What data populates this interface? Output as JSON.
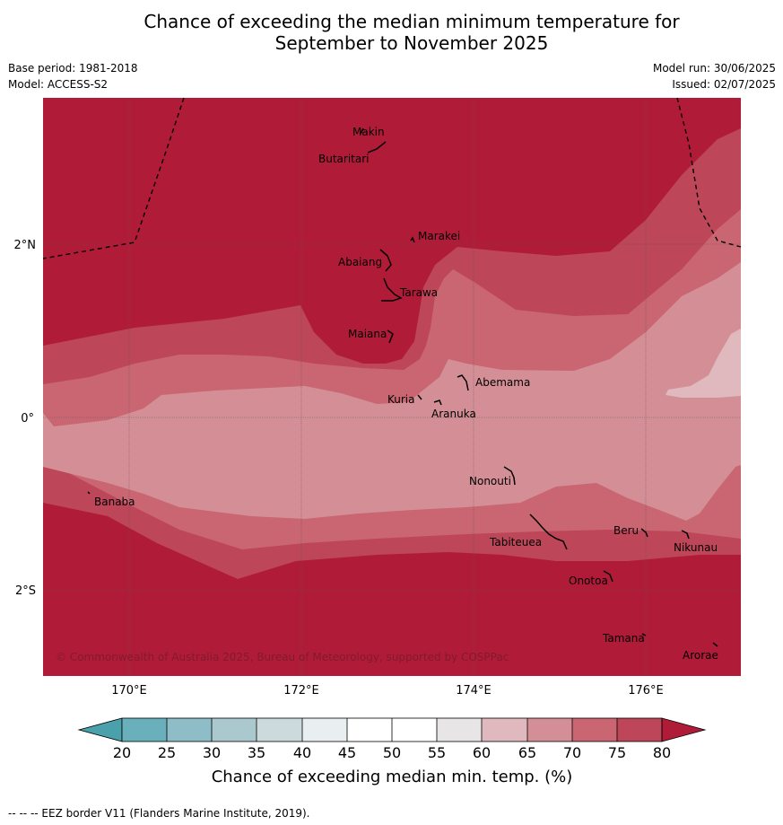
{
  "title_line1": "Chance of exceeding the median minimum temperature for",
  "title_line2": "September to November 2025",
  "base_period": "Base period: 1981-2018",
  "model": "Model: ACCESS-S2",
  "model_run": "Model run: 30/06/2025",
  "issued": "Issued: 02/07/2025",
  "copyright": "© Commonwealth of Australia 2025, Bureau of Meteorology, supported by COSPPac",
  "lat_ticks": [
    "2°N",
    "0°",
    "2°S"
  ],
  "lon_ticks": [
    "170°E",
    "172°E",
    "174°E",
    "176°E"
  ],
  "places": {
    "makin": "Makin",
    "butaritari": "Butaritari",
    "marakei": "Marakei",
    "abaiang": "Abaiang",
    "tarawa": "Tarawa",
    "maiana": "Maiana",
    "abemama": "Abemama",
    "kuria": "Kuria",
    "aranuka": "Aranuka",
    "banaba": "Banaba",
    "nonouti": "Nonouti",
    "tabiteuea": "Tabiteuea",
    "beru": "Beru",
    "nikunau": "Nikunau",
    "onotoa": "Onotoa",
    "tamana": "Tamana",
    "arorae": "Arorae"
  },
  "colorbar": {
    "label": "Chance of exceeding median min. temp. (%)",
    "ticks": [
      "20",
      "25",
      "30",
      "35",
      "40",
      "45",
      "50",
      "55",
      "60",
      "65",
      "70",
      "75",
      "80"
    ],
    "colors": {
      "below_20": "#4aa0ab",
      "c20_25": "#6aafbc",
      "c25_30": "#8ebcc7",
      "c30_35": "#abc8ce",
      "c35_40": "#ccdadd",
      "c40_45": "#e9eef0",
      "c45_55": "#ffffff",
      "c55_60": "#e7e5e6",
      "c60_65": "#e0b9bf",
      "c65_70": "#d48f96",
      "c70_75": "#c96672",
      "c75_80": "#bd4658",
      "above_80": "#b01c38"
    }
  },
  "eez_note": "--  --  -- EEZ border V11 (Flanders Marine Institute, 2019)."
}
